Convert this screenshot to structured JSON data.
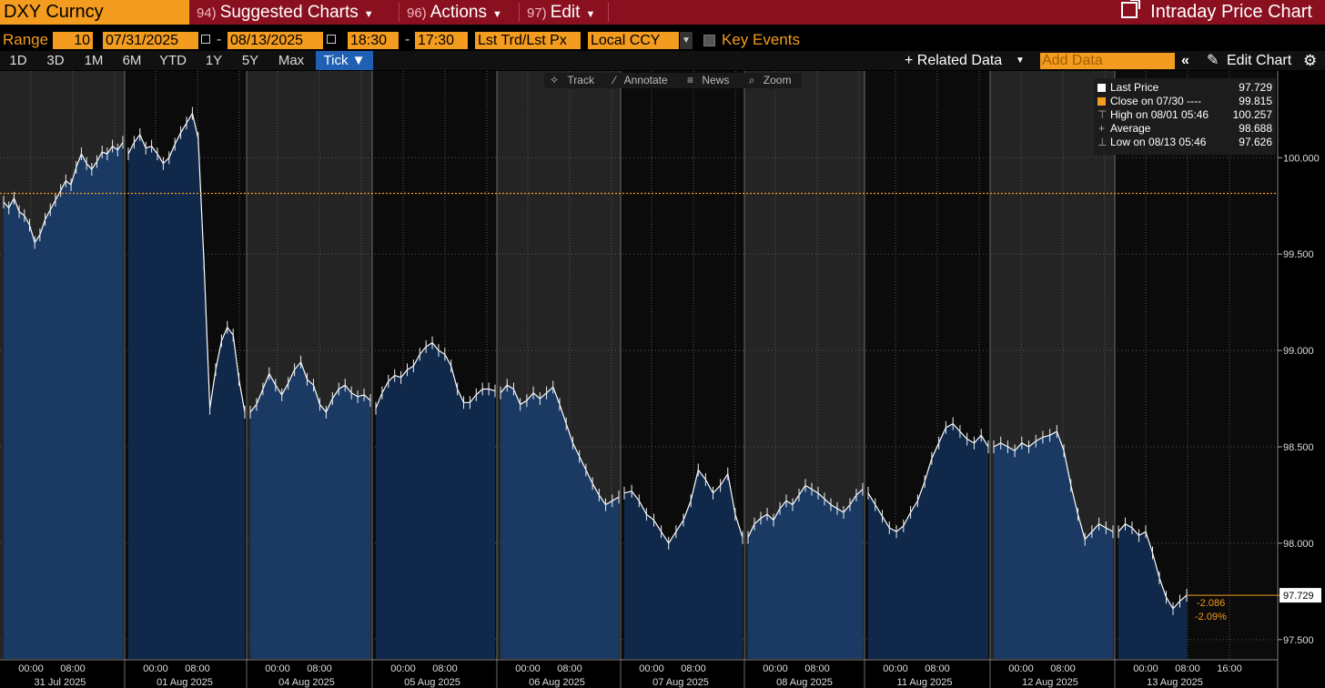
{
  "header": {
    "security": "DXY Curncy",
    "menus": [
      {
        "num": "94)",
        "label": "Suggested Charts"
      },
      {
        "num": "96)",
        "label": "Actions"
      },
      {
        "num": "97)",
        "label": "Edit"
      }
    ],
    "title": "Intraday Price Chart"
  },
  "controls": {
    "range_label": "Range",
    "interval": "10",
    "start_date": "07/31/2025",
    "end_date": "08/13/2025",
    "start_time": "18:30",
    "end_time": "17:30",
    "price_type": "Lst Trd/Lst Px",
    "currency": "Local CCY",
    "key_events": "Key Events"
  },
  "ranges": [
    "1D",
    "3D",
    "1M",
    "6M",
    "YTD",
    "1Y",
    "5Y",
    "Max"
  ],
  "tick_label": "Tick ▼",
  "related_data": "+ Related Data",
  "add_data_placeholder": "Add Data",
  "edit_chart": "Edit Chart",
  "tools": [
    "Track",
    "Annotate",
    "News",
    "Zoom"
  ],
  "legend": [
    {
      "label": "Last Price",
      "value": "97.729",
      "color": "#ffffff"
    },
    {
      "label": "Close on 07/30 ----",
      "value": "99.815",
      "color": "#f39c1f"
    },
    {
      "label": "High on 08/01 05:46",
      "value": "100.257",
      "glyph": "⊤"
    },
    {
      "label": "Average",
      "value": "98.688",
      "glyph": "+"
    },
    {
      "label": "Low on 08/13 05:46",
      "value": "97.626",
      "glyph": "⊥"
    }
  ],
  "chart_data": {
    "type": "area",
    "series_name": "Last Price",
    "ylim": [
      97.4,
      100.45
    ],
    "yticks": [
      "100.000",
      "99.500",
      "99.000",
      "98.500",
      "98.000",
      "97.500"
    ],
    "reference_close": 99.815,
    "last_value_label": "97.729",
    "change": "-2.086",
    "change_pct": "-2.09%",
    "colors": {
      "fill": "#1b3a63",
      "line": "#ffffff",
      "ref": "#f39c1f",
      "shade": "#262626"
    },
    "days": [
      {
        "date": "31 Jul 2025",
        "x_ticks": [
          "00:00",
          "08:00"
        ],
        "points": [
          99.77,
          99.74,
          99.79,
          99.72,
          99.7,
          99.65,
          99.56,
          99.6,
          99.68,
          99.73,
          99.78,
          99.83,
          99.88,
          99.86,
          99.95,
          100.02,
          99.97,
          99.94,
          99.98,
          100.03,
          100.02,
          100.06,
          100.04,
          100.08
        ]
      },
      {
        "date": "01 Aug 2025",
        "x_ticks": [
          "00:00",
          "08:00"
        ],
        "points": [
          100.02,
          100.08,
          100.12,
          100.05,
          100.06,
          100.02,
          99.97,
          100.0,
          100.07,
          100.13,
          100.18,
          100.23,
          100.1,
          99.45,
          98.7,
          98.9,
          99.05,
          99.12,
          99.08,
          98.85,
          98.68
        ]
      },
      {
        "date": "04 Aug 2025",
        "x_ticks": [
          "00:00",
          "08:00"
        ],
        "points": [
          98.68,
          98.72,
          98.8,
          98.88,
          98.82,
          98.77,
          98.83,
          98.9,
          98.94,
          98.85,
          98.82,
          98.72,
          98.68,
          98.75,
          98.8,
          98.82,
          98.78,
          98.76,
          98.77,
          98.74
        ]
      },
      {
        "date": "05 Aug 2025",
        "x_ticks": [
          "00:00",
          "08:00"
        ],
        "points": [
          98.7,
          98.78,
          98.84,
          98.87,
          98.86,
          98.9,
          98.92,
          98.98,
          99.02,
          99.04,
          99.0,
          98.98,
          98.92,
          98.8,
          98.73,
          98.73,
          98.77,
          98.8,
          98.8,
          98.79
        ]
      },
      {
        "date": "06 Aug 2025",
        "x_ticks": [
          "00:00",
          "08:00"
        ],
        "points": [
          98.78,
          98.82,
          98.8,
          98.72,
          98.74,
          98.78,
          98.75,
          98.78,
          98.81,
          98.72,
          98.62,
          98.52,
          98.45,
          98.38,
          98.31,
          98.25,
          98.2,
          98.22,
          98.24
        ]
      },
      {
        "date": "07 Aug 2025",
        "x_ticks": [
          "00:00",
          "08:00"
        ],
        "points": [
          98.26,
          98.27,
          98.22,
          98.15,
          98.12,
          98.06,
          98.0,
          98.06,
          98.12,
          98.22,
          98.38,
          98.33,
          98.26,
          98.3,
          98.36,
          98.15,
          98.03
        ]
      },
      {
        "date": "08 Aug 2025",
        "x_ticks": [
          "00:00",
          "08:00"
        ],
        "points": [
          98.03,
          98.1,
          98.13,
          98.15,
          98.12,
          98.18,
          98.22,
          98.2,
          98.25,
          98.3,
          98.28,
          98.26,
          98.23,
          98.2,
          98.18,
          98.16,
          98.2,
          98.25,
          98.28
        ]
      },
      {
        "date": "11 Aug 2025",
        "x_ticks": [
          "00:00",
          "08:00"
        ],
        "points": [
          98.26,
          98.2,
          98.14,
          98.08,
          98.06,
          98.09,
          98.16,
          98.22,
          98.32,
          98.44,
          98.52,
          98.6,
          98.62,
          98.58,
          98.54,
          98.52,
          98.56,
          98.5
        ]
      },
      {
        "date": "12 Aug 2025",
        "x_ticks": [
          "00:00",
          "08:00"
        ],
        "points": [
          98.5,
          98.52,
          98.5,
          98.48,
          98.52,
          98.5,
          98.53,
          98.55,
          98.56,
          98.58,
          98.48,
          98.3,
          98.15,
          98.02,
          98.06,
          98.1,
          98.08,
          98.06
        ]
      },
      {
        "date": "13 Aug 2025",
        "x_ticks": [
          "00:00",
          "08:00",
          "16:00"
        ],
        "points": [
          98.06,
          98.1,
          98.08,
          98.04,
          98.06,
          97.95,
          97.82,
          97.72,
          97.66,
          97.7,
          97.73
        ]
      }
    ]
  }
}
